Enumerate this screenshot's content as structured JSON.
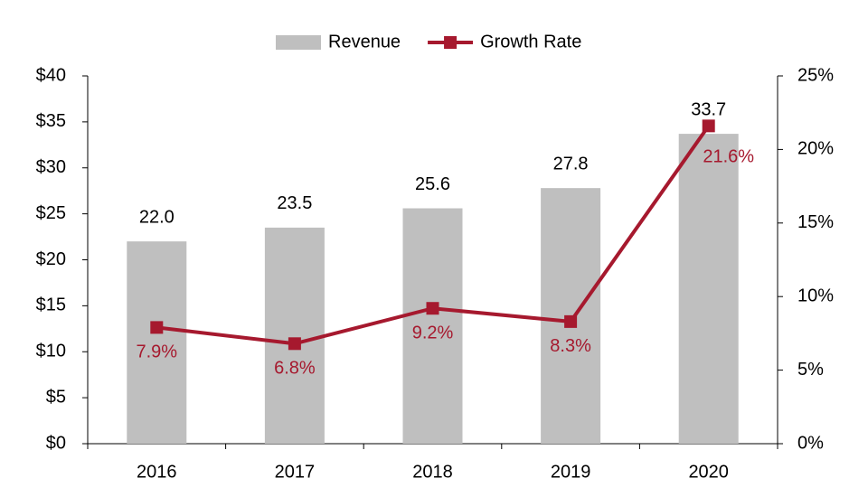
{
  "chart_data": {
    "type": "bar",
    "categories": [
      "2016",
      "2017",
      "2018",
      "2019",
      "2020"
    ],
    "series": [
      {
        "name": "Revenue",
        "type": "bar",
        "color": "#bfbfbf",
        "values": [
          22.0,
          23.5,
          25.6,
          27.8,
          33.7
        ],
        "value_labels": [
          "22.0",
          "23.5",
          "25.6",
          "27.8",
          "33.7"
        ]
      },
      {
        "name": "Growth Rate",
        "type": "line",
        "axis": "y2",
        "color": "#a6192e",
        "values": [
          7.9,
          6.8,
          9.2,
          8.3,
          21.6
        ],
        "value_labels": [
          "7.9%",
          "6.8%",
          "9.2%",
          "8.3%",
          "21.6%"
        ]
      }
    ],
    "ylim": [
      0,
      40
    ],
    "yticks": [
      {
        "value": 0,
        "label": "$0"
      },
      {
        "value": 5,
        "label": "$5"
      },
      {
        "value": 10,
        "label": "$10"
      },
      {
        "value": 15,
        "label": "$15"
      },
      {
        "value": 20,
        "label": "$20"
      },
      {
        "value": 25,
        "label": "$25"
      },
      {
        "value": 30,
        "label": "$30"
      },
      {
        "value": 35,
        "label": "$35"
      },
      {
        "value": 40,
        "label": "$40"
      }
    ],
    "y2lim": [
      0,
      25
    ],
    "y2ticks": [
      {
        "value": 0,
        "label": "0%"
      },
      {
        "value": 5,
        "label": "5%"
      },
      {
        "value": 10,
        "label": "10%"
      },
      {
        "value": 15,
        "label": "15%"
      },
      {
        "value": 20,
        "label": "20%"
      },
      {
        "value": 25,
        "label": "25%"
      }
    ],
    "legend": "top"
  }
}
